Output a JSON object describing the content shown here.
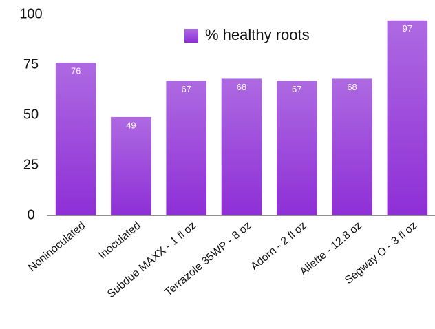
{
  "chart_data": {
    "type": "bar",
    "categories": [
      "Noninoculated",
      "Inoculated",
      "Subdue MAXX - 1 fl oz",
      "Terrazole 35WP - 8 oz",
      "Adorn - 2 fl oz",
      "Aliette - 12.8 oz",
      "Segway O - 3 fl oz"
    ],
    "series": [
      {
        "name": "% healthy roots",
        "color": "#8e2fd6",
        "values": [
          76,
          49,
          67,
          68,
          67,
          68,
          97
        ]
      }
    ],
    "ylim": [
      0,
      100
    ],
    "yticks": [
      0,
      25,
      50,
      75,
      100
    ],
    "grid": false,
    "legend": "top"
  }
}
